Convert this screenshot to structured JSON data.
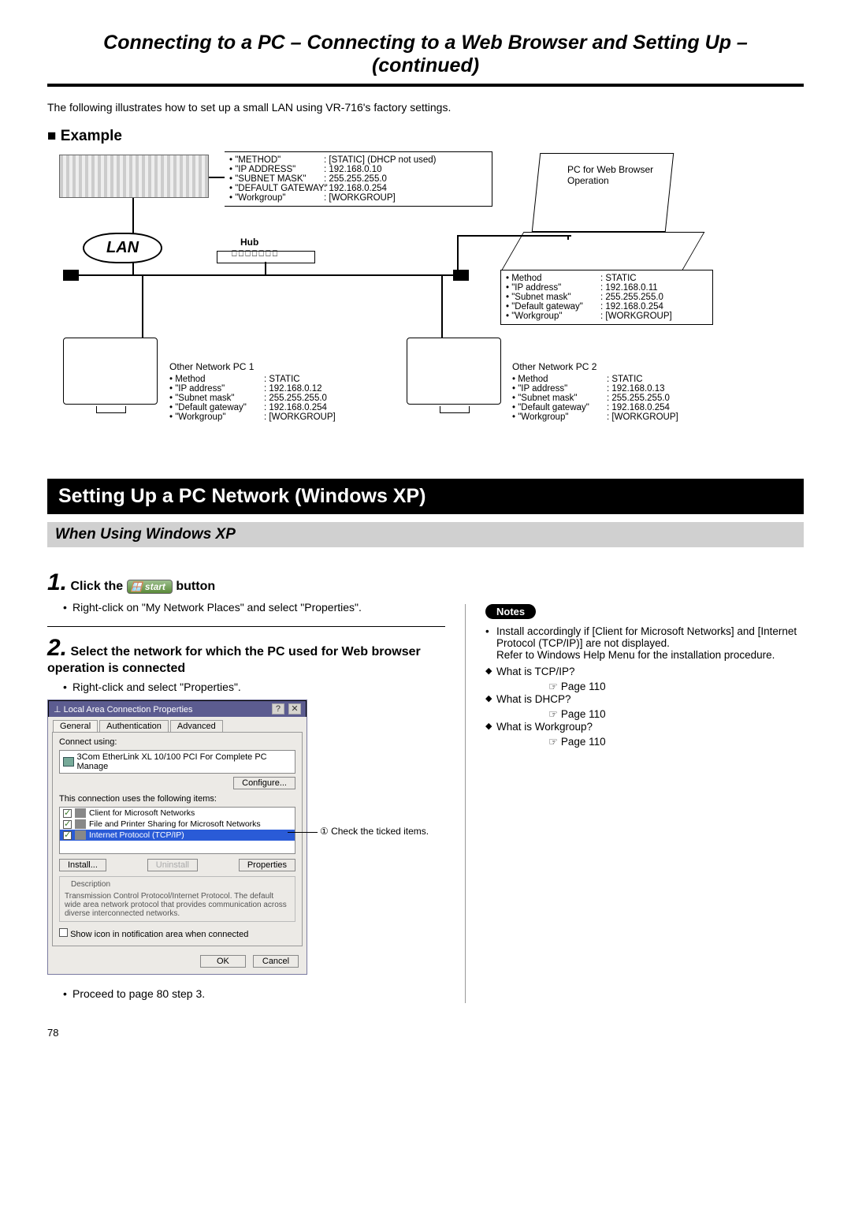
{
  "header": {
    "title": "Connecting to a PC – Connecting to a Web Browser and Setting Up – (continued)"
  },
  "intro": "The following illustrates how to set up a small LAN using VR-716's factory settings.",
  "example": {
    "heading": "Example",
    "lanLabel": "LAN",
    "hubLabel": "Hub",
    "vr716": {
      "items": [
        {
          "k": "\"METHOD\"",
          "v": ": [STATIC] (DHCP not used)"
        },
        {
          "k": "\"IP ADDRESS\"",
          "v": ": 192.168.0.10"
        },
        {
          "k": "\"SUBNET MASK\"",
          "v": ": 255.255.255.0"
        },
        {
          "k": "\"DEFAULT GATEWAY\"",
          "v": ": 192.168.0.254"
        },
        {
          "k": "\"Workgroup\"",
          "v": ": [WORKGROUP]"
        }
      ]
    },
    "browserPc": {
      "caption": "PC for Web Browser Operation",
      "items": [
        {
          "k": "Method",
          "v": ": STATIC"
        },
        {
          "k": "\"IP address\"",
          "v": ": 192.168.0.11"
        },
        {
          "k": "\"Subnet mask\"",
          "v": ": 255.255.255.0"
        },
        {
          "k": "\"Default gateway\"",
          "v": ": 192.168.0.254"
        },
        {
          "k": "\"Workgroup\"",
          "v": ": [WORKGROUP]"
        }
      ]
    },
    "pc1": {
      "caption": "Other Network PC 1",
      "items": [
        {
          "k": "Method",
          "v": ": STATIC"
        },
        {
          "k": "\"IP address\"",
          "v": ": 192.168.0.12"
        },
        {
          "k": "\"Subnet mask\"",
          "v": ": 255.255.255.0"
        },
        {
          "k": "\"Default gateway\"",
          "v": ": 192.168.0.254"
        },
        {
          "k": "\"Workgroup\"",
          "v": ": [WORKGROUP]"
        }
      ]
    },
    "pc2": {
      "caption": "Other Network PC 2",
      "items": [
        {
          "k": "Method",
          "v": ": STATIC"
        },
        {
          "k": "\"IP address\"",
          "v": ": 192.168.0.13"
        },
        {
          "k": "\"Subnet mask\"",
          "v": ": 255.255.255.0"
        },
        {
          "k": "\"Default gateway\"",
          "v": ": 192.168.0.254"
        },
        {
          "k": "\"Workgroup\"",
          "v": ": [WORKGROUP]"
        }
      ]
    }
  },
  "sectionBar": "Setting Up a PC Network (Windows XP)",
  "subBar": "When Using Windows XP",
  "step1": {
    "num": "1.",
    "pre": "Click the",
    "btn": "start",
    "post": "button",
    "bullet": "Right-click on \"My Network Places\" and select \"Properties\"."
  },
  "step2": {
    "num": "2.",
    "title": "Select the network for which the PC used for Web browser operation is connected",
    "bullet": "Right-click and select \"Properties\".",
    "callout": "① Check the ticked items.",
    "proceed": "Proceed to page 80 step 3."
  },
  "dialog": {
    "title": "Local Area Connection Properties",
    "tabs": [
      "General",
      "Authentication",
      "Advanced"
    ],
    "connectLabel": "Connect using:",
    "adapter": "3Com EtherLink XL 10/100 PCI For Complete PC Manage",
    "configureBtn": "Configure...",
    "usesLabel": "This connection uses the following items:",
    "items": [
      {
        "checked": true,
        "sel": false,
        "text": "Client for Microsoft Networks"
      },
      {
        "checked": true,
        "sel": false,
        "text": "File and Printer Sharing for Microsoft Networks"
      },
      {
        "checked": true,
        "sel": true,
        "text": "Internet Protocol (TCP/IP)"
      }
    ],
    "install": "Install...",
    "uninstall": "Uninstall",
    "properties": "Properties",
    "descLabel": "Description",
    "desc": "Transmission Control Protocol/Internet Protocol. The default wide area network protocol that provides communication across diverse interconnected networks.",
    "showIcon": "Show icon in notification area when connected",
    "ok": "OK",
    "cancel": "Cancel"
  },
  "notes": {
    "badge": "Notes",
    "lead": "Install accordingly if [Client for Microsoft Networks] and [Internet Protocol (TCP/IP)] are not displayed.",
    "lead2": "Refer to Windows Help Menu for the installation procedure.",
    "defs": [
      {
        "q": "What is TCP/IP?",
        "ref": "Page 110"
      },
      {
        "q": "What is DHCP?",
        "ref": "Page 110"
      },
      {
        "q": "What is Workgroup?",
        "ref": "Page 110"
      }
    ]
  },
  "pageNum": "78",
  "colors": {
    "sectionBg": "#000000",
    "sectionFg": "#ffffff",
    "subBg": "#d0d0d0",
    "dlgTitleBg": "#5c5c90",
    "selRowBg": "#2a5bd7"
  }
}
